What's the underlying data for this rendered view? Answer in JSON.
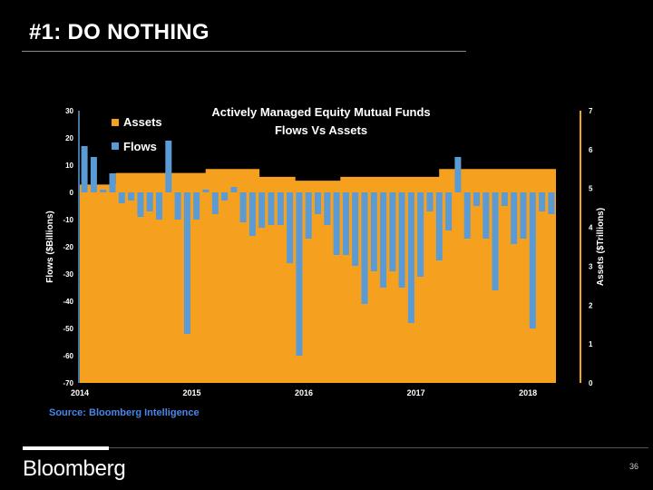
{
  "slide": {
    "title": "#1: DO NOTHING",
    "brand": "Bloomberg",
    "page_number": "36"
  },
  "colors": {
    "assets": "#f5a11f",
    "flows": "#5b9bd5",
    "axis_right": "#f5a11f",
    "axis_left": "#5b9bd5",
    "source": "#4a86e8"
  },
  "chart_data": {
    "type": "bar",
    "title": "Actively Managed Equity Mutual Funds",
    "subtitle": "Flows Vs Assets",
    "ylabel_left": "Flows ($Billions)",
    "ylabel_right": "Assets ($Trillions)",
    "ylim_left": [
      -70,
      30
    ],
    "ylim_right": [
      0,
      7
    ],
    "yticks_left": [
      30,
      20,
      10,
      0,
      -10,
      -20,
      -30,
      -40,
      -50,
      -60,
      -70
    ],
    "yticks_right": [
      7,
      6,
      5,
      4,
      3,
      2,
      1,
      0
    ],
    "x_tick_labels": [
      "2014",
      "2015",
      "2016",
      "2017",
      "2018"
    ],
    "x_tick_index": [
      0,
      12,
      24,
      36,
      48
    ],
    "legend": [
      "Assets",
      "Flows"
    ],
    "source": "Source: Bloomberg Intelligence",
    "series": [
      {
        "name": "Assets",
        "unit": "$ Trillions",
        "style": "step-area",
        "values": [
          5.1,
          5.1,
          5.1,
          5.1,
          5.4,
          5.4,
          5.4,
          5.4,
          5.4,
          5.4,
          5.4,
          5.4,
          5.4,
          5.4,
          5.5,
          5.5,
          5.5,
          5.5,
          5.5,
          5.5,
          5.3,
          5.3,
          5.3,
          5.3,
          5.2,
          5.2,
          5.2,
          5.2,
          5.2,
          5.3,
          5.3,
          5.3,
          5.3,
          5.3,
          5.3,
          5.3,
          5.3,
          5.3,
          5.3,
          5.3,
          5.5,
          5.5,
          5.5,
          5.5,
          5.5,
          5.5,
          5.5,
          5.5,
          5.5,
          5.5,
          5.5,
          5.5,
          5.5
        ]
      },
      {
        "name": "Flows",
        "unit": "$ Billions",
        "values": [
          17,
          13,
          1,
          7,
          -4,
          -3,
          -9,
          -7,
          -10,
          19,
          -10,
          -52,
          -10,
          1,
          -8,
          -3,
          2,
          -11,
          -16,
          -13,
          -12,
          -12,
          -26,
          -60,
          -17,
          -8,
          -12,
          -23,
          -23,
          -27,
          -41,
          -29,
          -35,
          -29,
          -35,
          -48,
          -31,
          -7,
          -25,
          -14,
          13,
          -17,
          -5,
          -17,
          -36,
          -5,
          -19,
          -17,
          -50,
          -7,
          -8
        ]
      }
    ]
  }
}
